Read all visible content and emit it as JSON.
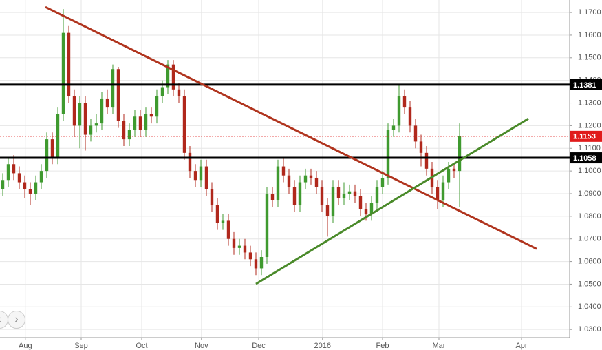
{
  "chart_data": {
    "type": "candlestick",
    "up_color": "#3f9a2f",
    "down_color": "#b0281c",
    "grid": true,
    "xlim": [
      -0.5,
      103
    ],
    "xticks": [
      {
        "value": 4.1,
        "label": "Aug"
      },
      {
        "value": 14.25,
        "label": "Sep"
      },
      {
        "value": 25.25,
        "label": "Oct"
      },
      {
        "value": 36.1,
        "label": "Nov"
      },
      {
        "value": 46.5,
        "label": "Dec"
      },
      {
        "value": 58.1,
        "label": "2016"
      },
      {
        "value": 69,
        "label": "Feb"
      },
      {
        "value": 79.25,
        "label": "Mar"
      },
      {
        "value": 94.25,
        "label": "Apr"
      }
    ],
    "ylim": [
      1.0264,
      1.1755
    ],
    "yticks": [
      {
        "value": 1.03,
        "label": "1.0300"
      },
      {
        "value": 1.04,
        "label": "1.0400"
      },
      {
        "value": 1.05,
        "label": "1.0500"
      },
      {
        "value": 1.06,
        "label": "1.0600"
      },
      {
        "value": 1.07,
        "label": "1.0700"
      },
      {
        "value": 1.08,
        "label": "1.0800"
      },
      {
        "value": 1.09,
        "label": "1.0900"
      },
      {
        "value": 1.1,
        "label": "1.1000"
      },
      {
        "value": 1.11,
        "label": "1.1100"
      },
      {
        "value": 1.12,
        "label": "1.1200"
      },
      {
        "value": 1.13,
        "label": "1.1300"
      },
      {
        "value": 1.14,
        "label": "1.1400"
      },
      {
        "value": 1.15,
        "label": "1.1500"
      },
      {
        "value": 1.16,
        "label": "1.1600"
      },
      {
        "value": 1.17,
        "label": "1.1700"
      }
    ],
    "open": [
      1.092,
      1.096,
      1.103,
      1.099,
      1.095,
      1.092,
      1.09,
      1.095,
      1.1,
      1.114,
      1.106,
      1.125,
      1.161,
      1.133,
      1.12,
      1.13,
      1.116,
      1.12,
      1.121,
      1.132,
      1.128,
      1.145,
      1.122,
      1.114,
      1.118,
      1.124,
      1.118,
      1.125,
      1.124,
      1.133,
      1.137,
      1.147,
      1.136,
      1.133,
      1.108,
      1.1,
      1.096,
      1.102,
      1.092,
      1.085,
      1.077,
      1.078,
      1.07,
      1.066,
      1.067,
      1.064,
      1.061,
      1.057,
      1.062,
      1.09,
      1.087,
      1.102,
      1.098,
      1.093,
      1.085,
      1.095,
      1.098,
      1.097,
      1.093,
      1.085,
      1.08,
      1.093,
      1.088,
      1.09,
      1.091,
      1.089,
      1.083,
      1.081,
      1.086,
      1.093,
      1.097,
      1.118,
      1.12,
      1.133,
      1.128,
      1.12,
      1.113,
      1.108,
      1.101,
      1.093,
      1.087,
      1.095,
      1.101,
      1.1
    ],
    "high": [
      1.099,
      1.106,
      1.107,
      1.102,
      1.098,
      1.095,
      1.098,
      1.103,
      1.117,
      1.117,
      1.128,
      1.1715,
      1.164,
      1.136,
      1.133,
      1.133,
      1.123,
      1.125,
      1.135,
      1.136,
      1.147,
      1.146,
      1.125,
      1.121,
      1.127,
      1.127,
      1.128,
      1.128,
      1.136,
      1.14,
      1.149,
      1.149,
      1.139,
      1.136,
      1.111,
      1.103,
      1.105,
      1.105,
      1.095,
      1.088,
      1.081,
      1.081,
      1.073,
      1.07,
      1.07,
      1.067,
      1.064,
      1.065,
      1.093,
      1.093,
      1.105,
      1.106,
      1.101,
      1.096,
      1.098,
      1.101,
      1.101,
      1.1,
      1.096,
      1.088,
      1.096,
      1.096,
      1.095,
      1.094,
      1.094,
      1.092,
      1.086,
      1.089,
      1.096,
      1.1,
      1.121,
      1.123,
      1.138,
      1.136,
      1.131,
      1.123,
      1.116,
      1.111,
      1.104,
      1.096,
      1.098,
      1.104,
      1.103,
      1.121
    ],
    "low": [
      1.089,
      1.093,
      1.096,
      1.092,
      1.088,
      1.085,
      1.087,
      1.092,
      1.097,
      1.103,
      1.103,
      1.122,
      1.13,
      1.115,
      1.11,
      1.109,
      1.113,
      1.117,
      1.118,
      1.125,
      1.125,
      1.119,
      1.111,
      1.111,
      1.115,
      1.115,
      1.115,
      1.121,
      1.121,
      1.13,
      1.134,
      1.133,
      1.13,
      1.105,
      1.097,
      1.093,
      1.093,
      1.089,
      1.082,
      1.074,
      1.074,
      1.067,
      1.063,
      1.063,
      1.061,
      1.058,
      1.054,
      1.054,
      1.059,
      1.084,
      1.084,
      1.095,
      1.09,
      1.082,
      1.082,
      1.092,
      1.094,
      1.09,
      1.082,
      1.071,
      1.077,
      1.085,
      1.085,
      1.087,
      1.086,
      1.08,
      1.078,
      1.078,
      1.083,
      1.09,
      1.094,
      1.115,
      1.117,
      1.125,
      1.117,
      1.11,
      1.102,
      1.098,
      1.09,
      1.083,
      1.084,
      1.092,
      1.097,
      1.084
    ],
    "close": [
      1.096,
      1.103,
      1.099,
      1.095,
      1.092,
      1.09,
      1.095,
      1.1,
      1.114,
      1.106,
      1.125,
      1.161,
      1.133,
      1.12,
      1.13,
      1.116,
      1.12,
      1.121,
      1.132,
      1.128,
      1.145,
      1.122,
      1.114,
      1.118,
      1.124,
      1.118,
      1.125,
      1.124,
      1.133,
      1.137,
      1.147,
      1.136,
      1.133,
      1.108,
      1.1,
      1.096,
      1.102,
      1.092,
      1.085,
      1.077,
      1.078,
      1.07,
      1.066,
      1.067,
      1.064,
      1.061,
      1.057,
      1.062,
      1.09,
      1.087,
      1.102,
      1.098,
      1.093,
      1.085,
      1.095,
      1.098,
      1.097,
      1.093,
      1.085,
      1.08,
      1.093,
      1.088,
      1.09,
      1.091,
      1.089,
      1.083,
      1.081,
      1.086,
      1.093,
      1.097,
      1.118,
      1.12,
      1.133,
      1.128,
      1.12,
      1.113,
      1.108,
      1.101,
      1.093,
      1.087,
      1.095,
      1.101,
      1.1,
      1.1153
    ],
    "levels": [
      {
        "value": 1.1381,
        "color": "#000000",
        "style": "solid"
      },
      {
        "value": 1.1058,
        "color": "#000000",
        "style": "solid"
      },
      {
        "value": 1.1153,
        "color": "#e01b1b",
        "style": "dotted"
      }
    ],
    "trendlines": [
      {
        "color": "#b0341e",
        "x": [
          7.75,
          97
        ],
        "y": [
          1.1724,
          1.0656
        ]
      },
      {
        "color": "#4a8a2a",
        "x": [
          46,
          95.5
        ],
        "y": [
          1.0501,
          1.1231
        ]
      }
    ]
  }
}
